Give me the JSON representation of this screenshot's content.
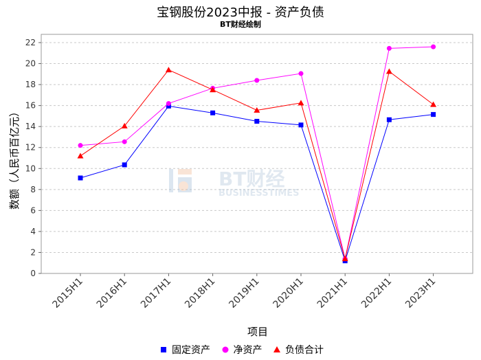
{
  "title": "宝钢股份2023中报 - 资产负债",
  "subtitle": "BT财经绘制",
  "watermark": {
    "text_main": "BT财经",
    "text_sub": "BUSINESSTIMES"
  },
  "chart_data": {
    "type": "line",
    "xlabel": "项目",
    "ylabel": "数额（人民币百亿元）",
    "ylim": [
      0,
      22
    ],
    "yticks": [
      0,
      2,
      4,
      6,
      8,
      10,
      12,
      14,
      16,
      18,
      20,
      22
    ],
    "grid": true,
    "legend_position": "bottom",
    "categories": [
      "2015H1",
      "2016H1",
      "2017H1",
      "2018H1",
      "2019H1",
      "2020H1",
      "2021H1",
      "2022H1",
      "2023H1"
    ],
    "series": [
      {
        "name": "固定资产",
        "color": "#0000ff",
        "marker": "square",
        "values": [
          9.1,
          10.35,
          15.95,
          15.3,
          14.5,
          14.15,
          1.2,
          14.65,
          15.15
        ]
      },
      {
        "name": "净资产",
        "color": "#ff00ff",
        "marker": "circle",
        "values": [
          12.2,
          12.55,
          16.2,
          17.65,
          18.4,
          19.05,
          1.4,
          21.45,
          21.6
        ]
      },
      {
        "name": "负债合计",
        "color": "#ff0000",
        "marker": "triangle",
        "values": [
          11.2,
          14.05,
          19.4,
          17.5,
          15.55,
          16.25,
          1.4,
          19.25,
          16.1
        ]
      }
    ]
  }
}
